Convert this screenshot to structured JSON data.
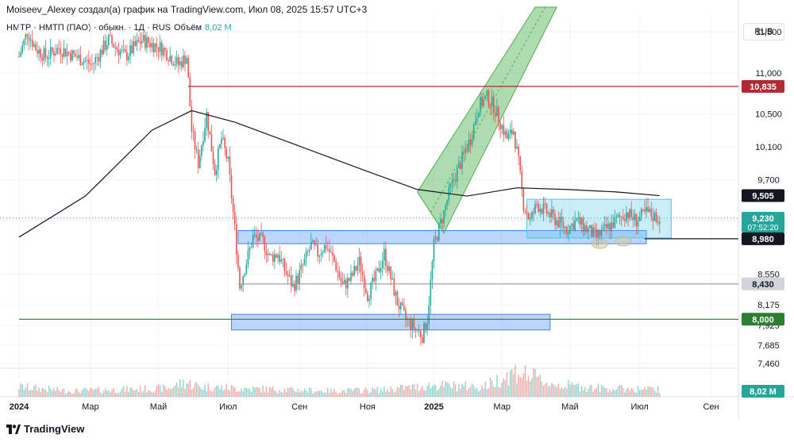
{
  "header": {
    "caption": "Moiseev_Alexey создал(а) график на TradingView.com, Июл 08, 2025 15:57 UTC+3",
    "symbol": "НМТР · НМТП (ПАО) · обыкн. · 1Д · RUS",
    "volume_label": "Объём",
    "volume_value": "8,02 M",
    "currency": "RUB"
  },
  "footer": {
    "brand": "TradingView",
    "logo": "tradingview-logo-icon"
  },
  "price_scale": {
    "ticks": [
      "11,500",
      "11,000",
      "10,500",
      "10,100",
      "9,700",
      "9,200",
      "8,550",
      "8,175",
      "7,925",
      "7,685",
      "7,460"
    ],
    "tick_values": [
      11.5,
      11.0,
      10.5,
      10.1,
      9.7,
      9.2,
      8.55,
      8.175,
      7.925,
      7.685,
      7.46
    ],
    "badges": [
      {
        "name": "level-10835",
        "value": 10.835,
        "label": "10,835",
        "bg": "#b22833",
        "fg": "#ffffff"
      },
      {
        "name": "ma-value",
        "value": 9.505,
        "label": "9,505",
        "bg": "#131722",
        "fg": "#ffffff"
      },
      {
        "name": "last-price",
        "value": 9.23,
        "label": "9,230",
        "sub": "07:52:20",
        "bg": "#26a69a",
        "fg": "#ffffff"
      },
      {
        "name": "level-8980",
        "value": 8.98,
        "label": "8,980",
        "bg": "#131722",
        "fg": "#ffffff"
      },
      {
        "name": "level-8430",
        "value": 8.43,
        "label": "8,430",
        "bg": "#d1d4dc",
        "fg": "#131722"
      },
      {
        "name": "level-8000",
        "value": 8.0,
        "label": "8,000",
        "bg": "#2e7d32",
        "fg": "#ffffff"
      }
    ],
    "volume_badge": {
      "label": "8,02 M",
      "bg": "#26a69a"
    }
  },
  "time_axis": {
    "labels": [
      {
        "text": "2024",
        "day": 0,
        "bold": true
      },
      {
        "text": "Мар",
        "day": 43
      },
      {
        "text": "Май",
        "day": 84
      },
      {
        "text": "Июл",
        "day": 126
      },
      {
        "text": "Сен",
        "day": 169
      },
      {
        "text": "Ноя",
        "day": 210
      },
      {
        "text": "2025",
        "day": 250,
        "bold": true
      },
      {
        "text": "Мар",
        "day": 291
      },
      {
        "text": "Май",
        "day": 332
      },
      {
        "text": "Июл",
        "day": 374
      },
      {
        "text": "Сен",
        "day": 417
      }
    ]
  },
  "drawings": {
    "horizontal_lines": [
      {
        "name": "resistance-line",
        "value": 10.835,
        "color": "#b22833",
        "day_from": 102
      },
      {
        "name": "support-line",
        "value": 8.98,
        "color": "#131722",
        "day_from": 377
      },
      {
        "name": "level-line-8430",
        "value": 8.43,
        "color": "#9598a1",
        "day_from": 132
      },
      {
        "name": "level-line-8000",
        "value": 8.0,
        "color": "#2e7d32",
        "day_from": 0
      }
    ],
    "zones": [
      {
        "name": "support-zone-upper",
        "day_from": 132,
        "day_to": 378,
        "top": 9.08,
        "bottom": 8.92,
        "fill": "rgba(66,133,244,0.35)",
        "stroke": "#4285f4"
      },
      {
        "name": "support-zone-lower",
        "day_from": 128,
        "day_to": 320,
        "top": 8.06,
        "bottom": 7.87,
        "fill": "rgba(66,133,244,0.35)",
        "stroke": "#4285f4"
      },
      {
        "name": "consolidation-box",
        "day_from": 306,
        "day_to": 393,
        "top": 9.46,
        "bottom": 8.99,
        "fill": "rgba(80,200,230,0.30)",
        "stroke": "#50c8e6"
      }
    ],
    "channel": {
      "name": "uptrend-channel",
      "fill": "rgba(76,175,80,0.45)",
      "stroke": "#4caf50"
    },
    "ellipses": [
      {
        "name": "low-marker-1",
        "day": 350,
        "value": 8.92
      },
      {
        "name": "low-marker-2",
        "day": 364,
        "value": 8.95
      }
    ]
  },
  "chart_data": {
    "type": "candlestick",
    "title": "НМТП (ПАО) · обыкн. · 1Д",
    "ylabel": "RUB",
    "ylim": [
      7.3,
      11.8
    ],
    "moving_average": [
      [
        0,
        9.0
      ],
      [
        40,
        9.5
      ],
      [
        80,
        10.3
      ],
      [
        104,
        10.54
      ],
      [
        130,
        10.4
      ],
      [
        170,
        10.1
      ],
      [
        210,
        9.8
      ],
      [
        240,
        9.58
      ],
      [
        270,
        9.5
      ],
      [
        300,
        9.6
      ],
      [
        330,
        9.58
      ],
      [
        360,
        9.55
      ],
      [
        386,
        9.505
      ]
    ],
    "price_path": [
      [
        0,
        11.2
      ],
      [
        5,
        11.5
      ],
      [
        10,
        11.3
      ],
      [
        16,
        11.2
      ],
      [
        24,
        11.3
      ],
      [
        34,
        11.2
      ],
      [
        44,
        11.1
      ],
      [
        54,
        11.4
      ],
      [
        64,
        11.2
      ],
      [
        74,
        11.4
      ],
      [
        86,
        11.3
      ],
      [
        96,
        11.1
      ],
      [
        101,
        11.2
      ],
      [
        104,
        10.3
      ],
      [
        108,
        9.9
      ],
      [
        113,
        10.5
      ],
      [
        118,
        9.8
      ],
      [
        122,
        10.2
      ],
      [
        126,
        9.9
      ],
      [
        130,
        9.1
      ],
      [
        133,
        8.4
      ],
      [
        137,
        8.7
      ],
      [
        141,
        9.0
      ],
      [
        147,
        8.95
      ],
      [
        151,
        8.75
      ],
      [
        156,
        8.8
      ],
      [
        160,
        8.6
      ],
      [
        165,
        8.4
      ],
      [
        168,
        8.5
      ],
      [
        172,
        8.7
      ],
      [
        176,
        8.9
      ],
      [
        180,
        8.8
      ],
      [
        185,
        8.9
      ],
      [
        190,
        8.7
      ],
      [
        195,
        8.4
      ],
      [
        200,
        8.5
      ],
      [
        205,
        8.7
      ],
      [
        210,
        8.3
      ],
      [
        215,
        8.5
      ],
      [
        220,
        8.8
      ],
      [
        224,
        8.5
      ],
      [
        228,
        8.2
      ],
      [
        233,
        8.0
      ],
      [
        238,
        7.9
      ],
      [
        243,
        7.8
      ],
      [
        246,
        8.0
      ],
      [
        250,
        8.9
      ],
      [
        253,
        9.1
      ],
      [
        256,
        9.3
      ],
      [
        260,
        9.6
      ],
      [
        266,
        9.9
      ],
      [
        272,
        10.2
      ],
      [
        277,
        10.6
      ],
      [
        282,
        10.7
      ],
      [
        286,
        10.6
      ],
      [
        290,
        10.4
      ],
      [
        294,
        10.2
      ],
      [
        298,
        10.3
      ],
      [
        301,
        9.9
      ],
      [
        304,
        9.4
      ],
      [
        308,
        9.2
      ],
      [
        312,
        9.4
      ],
      [
        318,
        9.3
      ],
      [
        324,
        9.2
      ],
      [
        330,
        9.1
      ],
      [
        336,
        9.2
      ],
      [
        342,
        9.1
      ],
      [
        348,
        9.0
      ],
      [
        354,
        9.1
      ],
      [
        360,
        9.2
      ],
      [
        366,
        9.3
      ],
      [
        372,
        9.2
      ],
      [
        378,
        9.3
      ],
      [
        383,
        9.25
      ],
      [
        386,
        9.23
      ]
    ],
    "volume_path": [
      [
        0,
        0.35
      ],
      [
        10,
        0.3
      ],
      [
        30,
        0.2
      ],
      [
        60,
        0.25
      ],
      [
        90,
        0.3
      ],
      [
        100,
        0.5
      ],
      [
        110,
        0.35
      ],
      [
        130,
        0.3
      ],
      [
        160,
        0.25
      ],
      [
        190,
        0.2
      ],
      [
        220,
        0.25
      ],
      [
        250,
        0.4
      ],
      [
        280,
        0.35
      ],
      [
        300,
        0.9
      ],
      [
        320,
        0.45
      ],
      [
        350,
        0.3
      ],
      [
        386,
        0.25
      ]
    ],
    "last_price": 9.23,
    "last_volume": "8,02 M"
  }
}
